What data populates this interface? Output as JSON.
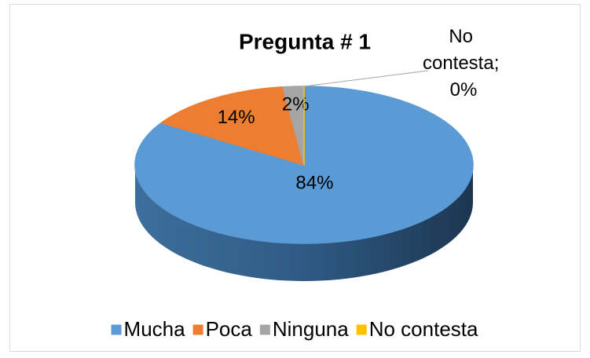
{
  "chart_data": {
    "type": "pie",
    "title": "Pregunta # 1",
    "categories": [
      "Mucha",
      "Poca",
      "Ninguna",
      "No contesta"
    ],
    "values": [
      84,
      14,
      2,
      0
    ],
    "value_labels": [
      "84%",
      "14%",
      "2%",
      "No contesta; 0%"
    ],
    "colors": [
      "#5b9bd5",
      "#ed7d31",
      "#a5a5a5",
      "#ffc000"
    ],
    "legend": "bottom"
  }
}
